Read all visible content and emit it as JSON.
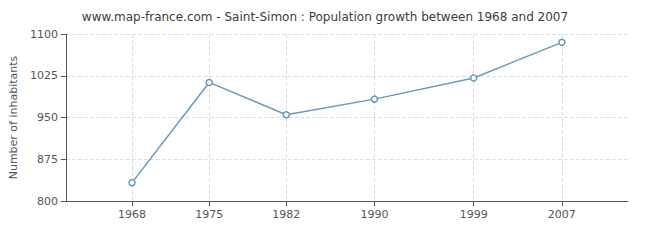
{
  "chart_data": {
    "type": "line",
    "title": "www.map-france.com - Saint-Simon : Population growth between 1968 and 2007",
    "ylabel": "Number of inhabitants",
    "x": [
      1968,
      1975,
      1982,
      1990,
      1999,
      2007
    ],
    "values": [
      833,
      1013,
      955,
      983,
      1021,
      1085
    ],
    "color": "#6699bb",
    "marker": "circle",
    "xlim": [
      1962,
      2013
    ],
    "ylim": [
      800,
      1100
    ],
    "xticks": [
      1968,
      1975,
      1982,
      1990,
      1999,
      2007
    ],
    "yticks": [
      800,
      875,
      950,
      1025,
      1100
    ],
    "grid": true
  }
}
